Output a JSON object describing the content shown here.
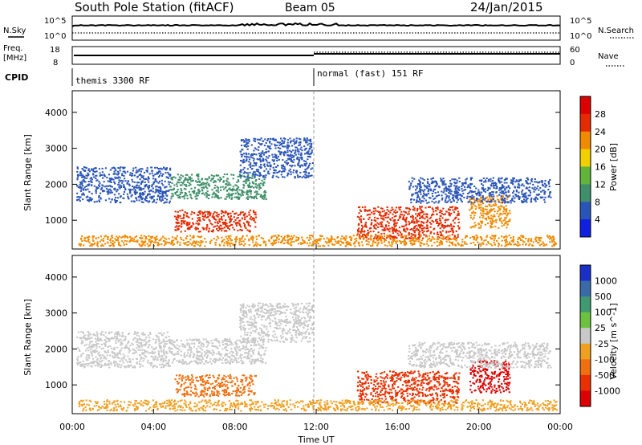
{
  "header": {
    "station": "South Pole Station (fitACF)",
    "beam": "Beam 05",
    "date": "24/Jan/2015"
  },
  "top_panels": {
    "nsky_label": "N.Sky",
    "nsearch_label": "N.Search",
    "nsky_ticks": [
      "10^5",
      "10^0"
    ],
    "nsearch_ticks": [
      "10^5",
      "10^0"
    ],
    "freq_label_1": "Freq.",
    "freq_label_2": "[MHz]",
    "freq_ticks": [
      "18",
      "8"
    ],
    "nave_label": "Nave",
    "nave_ticks": [
      "60",
      "0"
    ],
    "cpid_label": "CPID",
    "cpid_segments": [
      {
        "label": "themis 3300 RF",
        "start_hour": 0
      },
      {
        "label": "normal (fast) 151 RF",
        "start_hour": 12
      }
    ]
  },
  "chart_data": [
    {
      "type": "heatmap",
      "name": "power",
      "xlabel": "",
      "ylabel": "Slant Range [km]",
      "xlim": [
        0,
        24
      ],
      "ylim": [
        200,
        4600
      ],
      "yticks": [
        1000,
        2000,
        3000,
        4000
      ],
      "colorbar": {
        "label": "Power [dB]",
        "ticks": [
          "4",
          "8",
          "12",
          "16",
          "20",
          "24",
          "28"
        ],
        "colors": [
          "#1020e0",
          "#2a55b8",
          "#3f8f6a",
          "#60b43a",
          "#f0d000",
          "#f08a00",
          "#e52a00",
          "#dc0000"
        ]
      },
      "bands": [
        {
          "x0": 0.2,
          "x1": 4.8,
          "y0": 1500,
          "y1": 2500,
          "color": "#2a55b8"
        },
        {
          "x0": 4.8,
          "x1": 9.5,
          "y0": 1600,
          "y1": 2300,
          "color": "#3f8f6a"
        },
        {
          "x0": 5.0,
          "x1": 9.0,
          "y0": 700,
          "y1": 1300,
          "color": "#e52a00"
        },
        {
          "x0": 8.2,
          "x1": 11.8,
          "y0": 2200,
          "y1": 3300,
          "color": "#2a55b8"
        },
        {
          "x0": 14.0,
          "x1": 19.0,
          "y0": 500,
          "y1": 1400,
          "color": "#e52a00"
        },
        {
          "x0": 19.5,
          "x1": 21.5,
          "y0": 800,
          "y1": 1700,
          "color": "#f08a00"
        },
        {
          "x0": 16.5,
          "x1": 23.5,
          "y0": 1500,
          "y1": 2200,
          "color": "#2a55b8"
        },
        {
          "x0": 0.3,
          "x1": 23.8,
          "y0": 300,
          "y1": 600,
          "color": "#f08a00"
        }
      ]
    },
    {
      "type": "heatmap",
      "name": "velocity",
      "xlabel": "Time UT",
      "ylabel": "Slant Range [km]",
      "xlim": [
        0,
        24
      ],
      "ylim": [
        200,
        4600
      ],
      "xticks": [
        "00:00",
        "04:00",
        "08:00",
        "12:00",
        "16:00",
        "20:00",
        "00:00"
      ],
      "yticks": [
        1000,
        2000,
        3000,
        4000
      ],
      "colorbar": {
        "label": "Velocity [m s^-1]",
        "ticks": [
          "1000",
          "500",
          "100",
          "25",
          "-25",
          "-100",
          "-500",
          "-1000"
        ],
        "colors": [
          "#1a2fc8",
          "#3a6aa8",
          "#3f9a72",
          "#6cc23e",
          "#c8c8c8",
          "#f0a020",
          "#f07010",
          "#e83000",
          "#dc0000"
        ]
      },
      "bands": [
        {
          "x0": 0.2,
          "x1": 4.8,
          "y0": 1500,
          "y1": 2500,
          "color": "#c8c8c8"
        },
        {
          "x0": 4.8,
          "x1": 9.5,
          "y0": 1600,
          "y1": 2300,
          "color": "#c8c8c8"
        },
        {
          "x0": 5.0,
          "x1": 9.0,
          "y0": 700,
          "y1": 1300,
          "color": "#f07010"
        },
        {
          "x0": 8.2,
          "x1": 11.8,
          "y0": 2200,
          "y1": 3300,
          "color": "#c8c8c8"
        },
        {
          "x0": 14.0,
          "x1": 19.0,
          "y0": 500,
          "y1": 1400,
          "color": "#e83000"
        },
        {
          "x0": 19.5,
          "x1": 21.5,
          "y0": 800,
          "y1": 1700,
          "color": "#dc0000"
        },
        {
          "x0": 16.5,
          "x1": 23.5,
          "y0": 1500,
          "y1": 2200,
          "color": "#c8c8c8"
        },
        {
          "x0": 0.3,
          "x1": 23.8,
          "y0": 300,
          "y1": 600,
          "color": "#f0a020"
        }
      ]
    }
  ]
}
